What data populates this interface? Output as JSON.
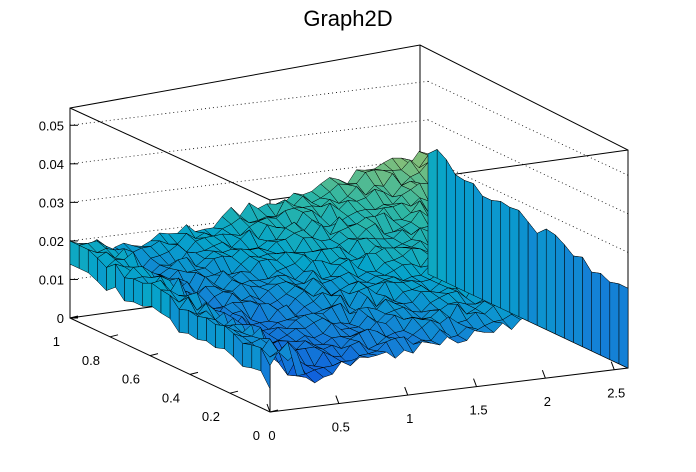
{
  "chart_data": {
    "type": "surface",
    "title": "Graph2D",
    "x_ticks": [
      "0",
      "0.5",
      "1",
      "1.5",
      "2",
      "2.5"
    ],
    "y_ticks": [
      "0",
      "0.2",
      "0.4",
      "0.6",
      "0.8",
      "1"
    ],
    "z_ticks": [
      "0",
      "0.01",
      "0.02",
      "0.03",
      "0.04",
      "0.05"
    ],
    "xlim": [
      0,
      2.6
    ],
    "ylim": [
      0,
      1
    ],
    "zlim": [
      0,
      0.055
    ],
    "grid": "dotted on back and side walls",
    "palette": [
      "#352a87",
      "#0f5cdd",
      "#1481d6",
      "#06a4ca",
      "#2eb7a4",
      "#87bf77",
      "#d1bb59",
      "#fec832",
      "#f9fb0e"
    ],
    "approx_surface": {
      "description_values_sample": [
        {
          "x": 0.0,
          "y": 1.0,
          "z": 0.02
        },
        {
          "x": 0.0,
          "y": 0.0,
          "z": 0.003
        },
        {
          "x": 1.0,
          "y": 1.0,
          "z": 0.038
        },
        {
          "x": 2.6,
          "y": 1.0,
          "z": 0.04
        },
        {
          "x": 2.6,
          "y": 0.0,
          "z": 0.02
        },
        {
          "x": 1.3,
          "y": 0.5,
          "z": 0.022
        }
      ]
    }
  }
}
